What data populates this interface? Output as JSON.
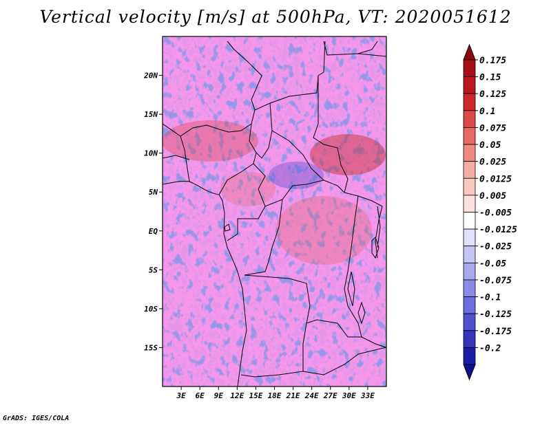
{
  "title": "Vertical velocity [m/s] at 500hPa, VT: 2020051612",
  "footer": "GrADS: IGES/COLA",
  "map": {
    "lon_range": [
      0,
      36
    ],
    "lat_range": [
      -20,
      25
    ],
    "lat_ticks": [
      {
        "value": 20,
        "label": "20N"
      },
      {
        "value": 15,
        "label": "15N"
      },
      {
        "value": 10,
        "label": "10N"
      },
      {
        "value": 5,
        "label": "5N"
      },
      {
        "value": 0,
        "label": "EQ"
      },
      {
        "value": -5,
        "label": "5S"
      },
      {
        "value": -10,
        "label": "10S"
      },
      {
        "value": -15,
        "label": "15S"
      }
    ],
    "lon_ticks": [
      {
        "value": 3,
        "label": "3E"
      },
      {
        "value": 6,
        "label": "6E"
      },
      {
        "value": 9,
        "label": "9E"
      },
      {
        "value": 12,
        "label": "12E"
      },
      {
        "value": 15,
        "label": "15E"
      },
      {
        "value": 18,
        "label": "18E"
      },
      {
        "value": 21,
        "label": "21E"
      },
      {
        "value": 24,
        "label": "24E"
      },
      {
        "value": 27,
        "label": "27E"
      },
      {
        "value": 30,
        "label": "30E"
      },
      {
        "value": 33,
        "label": "33E"
      }
    ]
  },
  "colorbar": {
    "levels": [
      {
        "label": "0.175",
        "color": "#a50f15"
      },
      {
        "label": "0.15",
        "color": "#b8171d"
      },
      {
        "label": "0.125",
        "color": "#cb2a2a"
      },
      {
        "label": "0.1",
        "color": "#dc4a45"
      },
      {
        "label": "0.075",
        "color": "#e66a62"
      },
      {
        "label": "0.05",
        "color": "#ef8a80"
      },
      {
        "label": "0.025",
        "color": "#f5aca4"
      },
      {
        "label": "0.0125",
        "color": "#f9c8c2"
      },
      {
        "label": "0.005",
        "color": "#fce2de"
      },
      {
        "label": "-0.005",
        "color": "#ffffff"
      },
      {
        "label": "-0.0125",
        "color": "#e0e0fb"
      },
      {
        "label": "-0.025",
        "color": "#c6c6f6"
      },
      {
        "label": "-0.05",
        "color": "#a9a9ef"
      },
      {
        "label": "-0.075",
        "color": "#8c8ce8"
      },
      {
        "label": "-0.1",
        "color": "#6e6ede"
      },
      {
        "label": "-0.125",
        "color": "#5050d2"
      },
      {
        "label": "-0.175",
        "color": "#3434bd"
      },
      {
        "label": "-0.2",
        "color": "#1c1ca6"
      }
    ],
    "top_arrow_color": "#8a0a10",
    "bottom_arrow_color": "#10108f"
  }
}
